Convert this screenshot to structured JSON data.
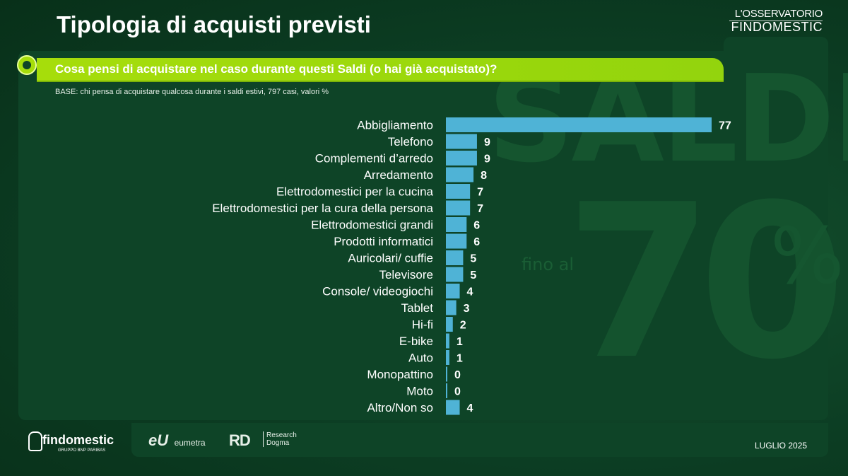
{
  "title": "Tipologia di acquisti previsti",
  "brand": {
    "line1": "L'OSSERVATORIO",
    "line2": "FINDOMESTIC"
  },
  "question": "Cosa pensi di acquistare nel caso durante questi Saldi (o hai già acquistato)?",
  "base": "BASE: chi pensa di acquistare qualcosa durante i saldi estivi, 797 casi, valori %",
  "watermark": {
    "word": "SALDI",
    "prefix": "fino al",
    "number": "70",
    "percent": "%"
  },
  "footer": {
    "findomestic": "findomestic",
    "findomestic_sub": "GRUPPO BNP PARIBAS",
    "eumetra_mark": "eU",
    "eumetra": "eumetra",
    "rd_mark": "RD",
    "rd_line1": "Research",
    "rd_line2": "Dogma",
    "date": "LUGLIO 2025"
  },
  "colors": {
    "background": "#0b3a21",
    "question_bar": "#a6dd0b",
    "bar": "#4fb3d6"
  },
  "chart_data": {
    "type": "bar",
    "orientation": "horizontal",
    "categories": [
      "Abbigliamento",
      "Telefono",
      "Complementi d’arredo",
      "Arredamento",
      "Elettrodomestici per la cucina",
      "Elettrodomestici per la cura della persona",
      "Elettrodomestici grandi",
      "Prodotti informatici",
      "Auricolari/ cuffie",
      "Televisore",
      "Console/ videogiochi",
      "Tablet",
      "Hi-fi",
      "E-bike",
      "Auto",
      "Monopattino",
      "Moto",
      "Altro/Non so"
    ],
    "values": [
      77,
      9,
      9,
      8,
      7,
      7,
      6,
      6,
      5,
      5,
      4,
      3,
      2,
      1,
      1,
      0,
      0,
      4
    ],
    "title": "",
    "xlabel": "",
    "ylabel": "",
    "xlim": [
      0,
      77
    ],
    "grid": false,
    "legend": "none",
    "data_labels": true
  }
}
